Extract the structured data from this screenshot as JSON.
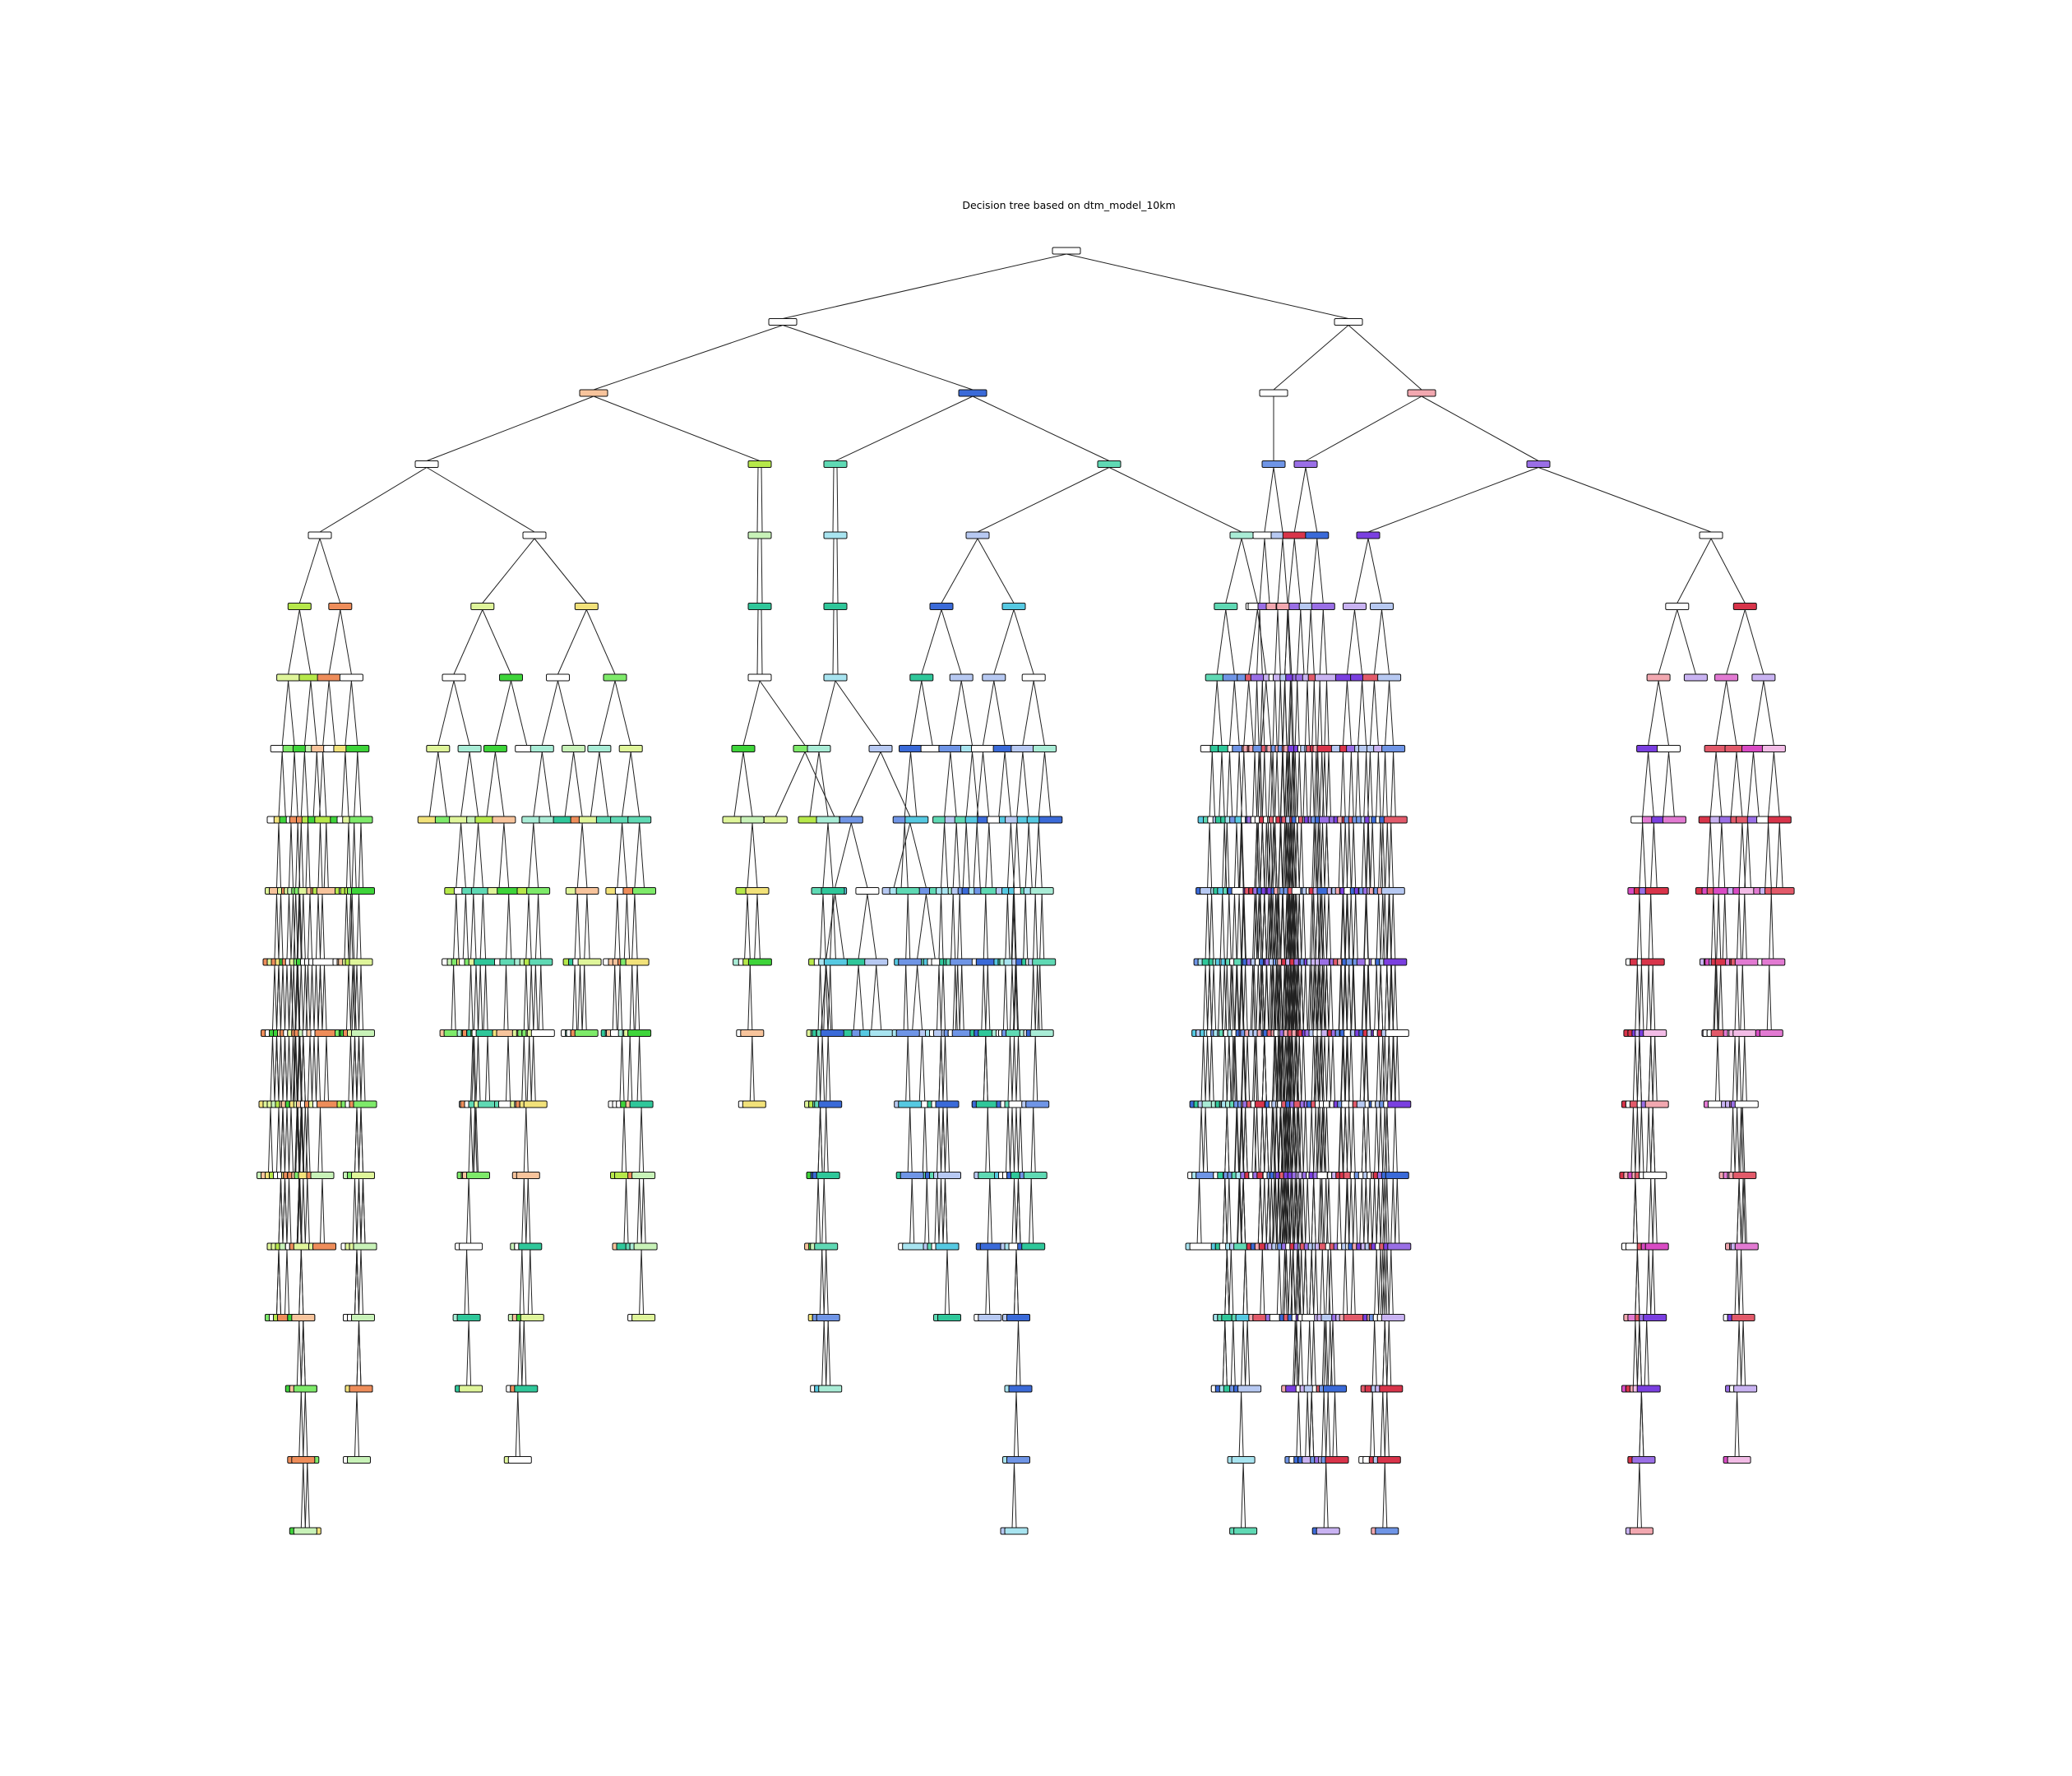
{
  "title": "Decision tree based on dtm_model_10km",
  "palette": {
    "neutral": "#ffffff",
    "green": [
      "#c8f2b8",
      "#7eea6a",
      "#3ed43a"
    ],
    "yellow_green": [
      "#dff59a",
      "#b6e84a"
    ],
    "orange": [
      "#f7c49c",
      "#ee8d5a",
      "#f2e27a"
    ],
    "teal": [
      "#a9ecd6",
      "#5fd9b4",
      "#2fc79a"
    ],
    "cyan": [
      "#a8e4f0",
      "#56c9e2"
    ],
    "blue": [
      "#b7c9f2",
      "#6f95e6",
      "#3a6ad8"
    ],
    "purple": [
      "#c9b3f2",
      "#9a6fe6",
      "#7a3fe0"
    ],
    "pink": [
      "#f2bce6",
      "#e27ad2",
      "#d94bc4"
    ],
    "red": [
      "#f2a8b0",
      "#e25a6a",
      "#d8344a"
    ]
  }
}
